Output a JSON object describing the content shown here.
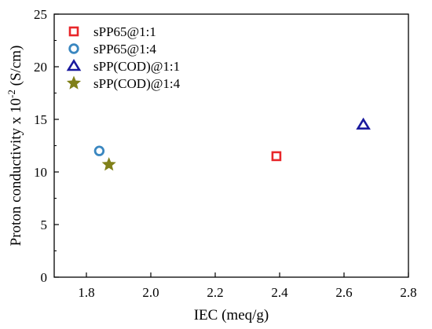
{
  "chart_data": {
    "type": "scatter",
    "xlabel": "IEC (meq/g)",
    "ylabel": "Proton conductivity x 10",
    "ylabel_sup": "-2",
    "ylabel_unit": " (S/cm)",
    "xlim": [
      1.7,
      2.8
    ],
    "ylim": [
      0,
      25
    ],
    "xticks": [
      1.8,
      2.0,
      2.2,
      2.4,
      2.6,
      2.8
    ],
    "xtick_labels": [
      "1.8",
      "2.0",
      "2.2",
      "2.4",
      "2.6",
      "2.8"
    ],
    "yticks": [
      0,
      5,
      10,
      15,
      20,
      25
    ],
    "ytick_labels": [
      "0",
      "5",
      "10",
      "15",
      "20",
      "25"
    ],
    "legend_position": "top-left",
    "series": [
      {
        "name": "sPP65@1:1",
        "marker": "square",
        "color": "#e8262a",
        "x": [
          2.39
        ],
        "y": [
          11.5
        ]
      },
      {
        "name": "sPP65@1:4",
        "marker": "circle",
        "color": "#3a87c0",
        "x": [
          1.84
        ],
        "y": [
          12.0
        ]
      },
      {
        "name": "sPP(COD)@1:1",
        "marker": "triangle",
        "color": "#1a1a9e",
        "x": [
          2.66
        ],
        "y": [
          14.5
        ]
      },
      {
        "name": "sPP(COD)@1:4",
        "marker": "star",
        "color": "#808019",
        "x": [
          1.87
        ],
        "y": [
          10.7
        ]
      }
    ]
  }
}
